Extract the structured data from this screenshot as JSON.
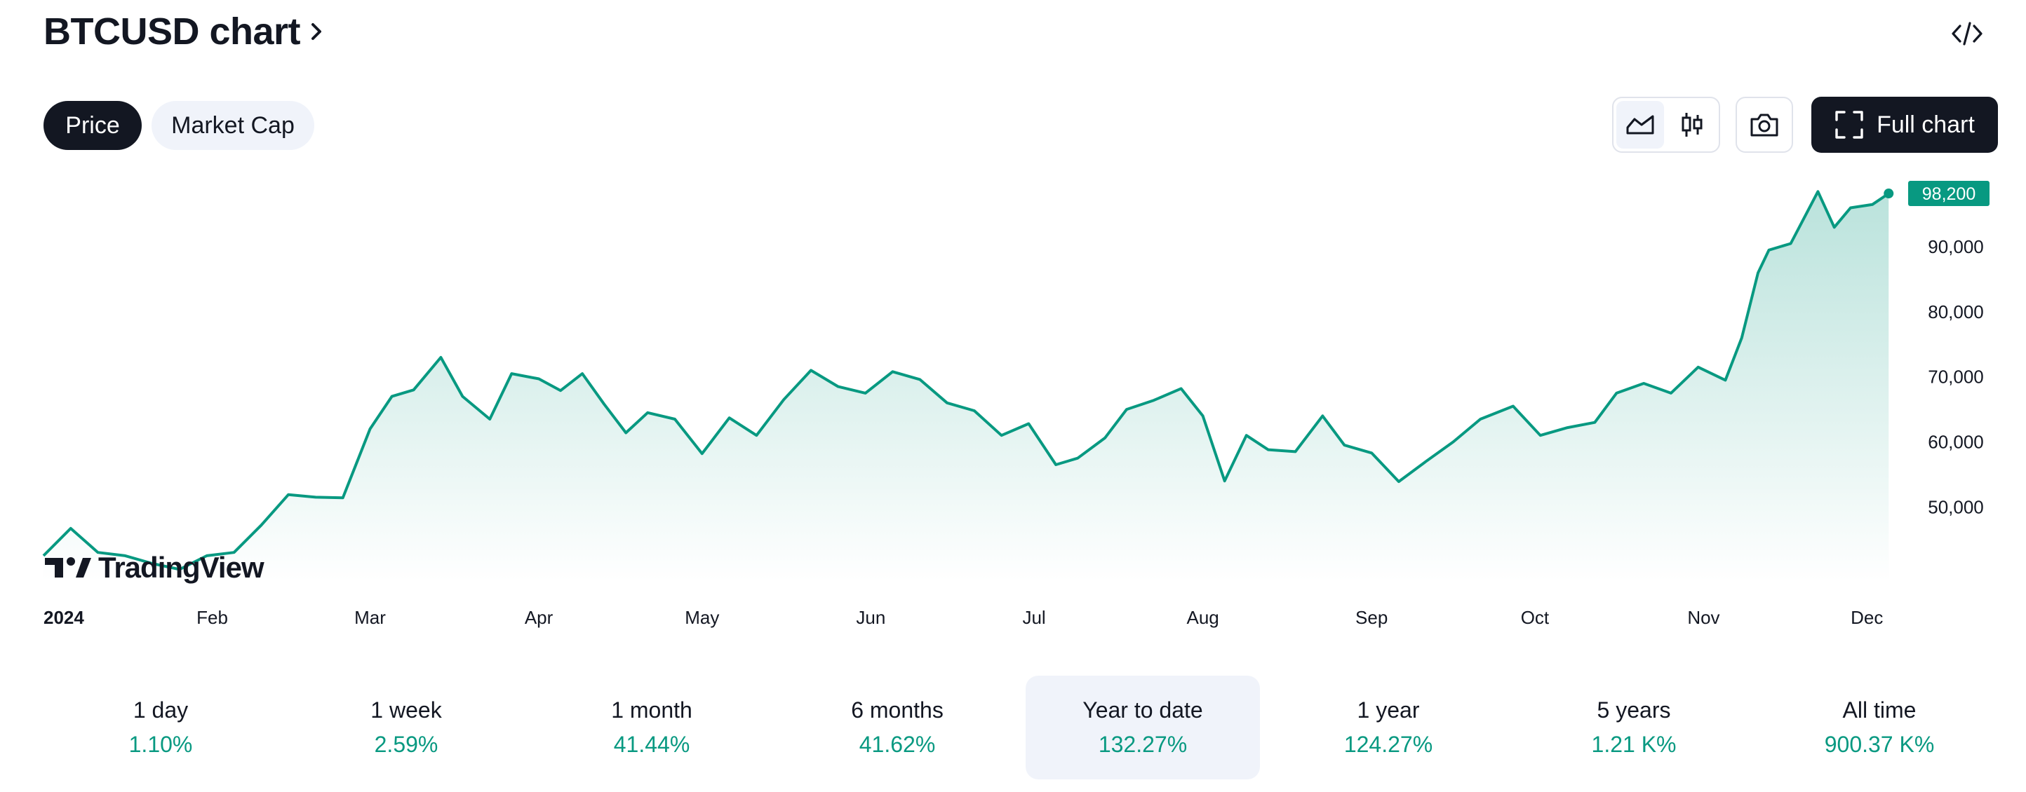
{
  "header": {
    "title": "BTCUSD chart",
    "title_chevron_icon": "chevron-right-icon",
    "embed_icon": "code-icon"
  },
  "tabs": [
    {
      "label": "Price",
      "selected": true
    },
    {
      "label": "Market Cap",
      "selected": false
    }
  ],
  "toolbar": {
    "line_style_icon": "area-chart-icon",
    "candle_style_icon": "candlestick-icon",
    "snapshot_icon": "camera-icon",
    "fullscreen_icon": "fullscreen-icon",
    "full_chart_label": "Full chart"
  },
  "watermark": {
    "text": "TradingView"
  },
  "colors": {
    "accent": "#089981",
    "dark": "#131722",
    "panel": "#f0f3fa"
  },
  "chart_data": {
    "type": "area",
    "symbol": "BTCUSD",
    "x_tick_labels": [
      "2024",
      "Feb",
      "Mar",
      "Apr",
      "May",
      "Jun",
      "Jul",
      "Aug",
      "Sep",
      "Oct",
      "Nov",
      "Dec"
    ],
    "y_tick_labels": [
      "50,000",
      "60,000",
      "70,000",
      "80,000",
      "90,000"
    ],
    "y_ticks": [
      50000,
      60000,
      70000,
      80000,
      90000
    ],
    "ylim": [
      38500,
      99500
    ],
    "last_price": 98200,
    "last_price_label": "98,200",
    "grid": false,
    "series": [
      {
        "x": [
          "2024-01-01",
          "2024-01-06",
          "2024-01-11",
          "2024-01-16",
          "2024-01-21",
          "2024-01-26",
          "2024-01-31",
          "2024-02-05",
          "2024-02-10",
          "2024-02-15",
          "2024-02-20",
          "2024-02-25",
          "2024-03-01",
          "2024-03-05",
          "2024-03-09",
          "2024-03-14",
          "2024-03-18",
          "2024-03-23",
          "2024-03-27",
          "2024-04-01",
          "2024-04-05",
          "2024-04-09",
          "2024-04-13",
          "2024-04-17",
          "2024-04-21",
          "2024-04-26",
          "2024-05-01",
          "2024-05-06",
          "2024-05-11",
          "2024-05-16",
          "2024-05-21",
          "2024-05-26",
          "2024-05-31",
          "2024-06-05",
          "2024-06-10",
          "2024-06-15",
          "2024-06-20",
          "2024-06-25",
          "2024-06-30",
          "2024-07-05",
          "2024-07-09",
          "2024-07-14",
          "2024-07-18",
          "2024-07-23",
          "2024-07-28",
          "2024-08-01",
          "2024-08-05",
          "2024-08-09",
          "2024-08-13",
          "2024-08-18",
          "2024-08-23",
          "2024-08-27",
          "2024-09-01",
          "2024-09-06",
          "2024-09-11",
          "2024-09-16",
          "2024-09-21",
          "2024-09-27",
          "2024-10-02",
          "2024-10-07",
          "2024-10-12",
          "2024-10-16",
          "2024-10-21",
          "2024-10-26",
          "2024-10-31",
          "2024-11-05",
          "2024-11-08",
          "2024-11-11",
          "2024-11-13",
          "2024-11-17",
          "2024-11-22",
          "2024-11-25",
          "2024-11-28",
          "2024-12-02",
          "2024-12-05"
        ],
        "y": [
          42500,
          46700,
          43000,
          42500,
          41300,
          40400,
          42500,
          43000,
          47200,
          51900,
          51500,
          51400,
          62000,
          67000,
          68000,
          73000,
          67000,
          63500,
          70500,
          69700,
          67900,
          70500,
          65800,
          61400,
          64500,
          63500,
          58200,
          63700,
          61000,
          66500,
          71000,
          68500,
          67500,
          70800,
          69600,
          66000,
          64800,
          61000,
          62800,
          56500,
          57500,
          60600,
          65000,
          66400,
          68200,
          64000,
          54000,
          61000,
          58800,
          58500,
          64000,
          59500,
          58300,
          53900,
          57000,
          60000,
          63500,
          65500,
          61000,
          62200,
          63000,
          67500,
          69000,
          67500,
          71500,
          69500,
          76000,
          86000,
          89500,
          90500,
          98500,
          93000,
          96000,
          96500,
          98200
        ]
      }
    ]
  },
  "performance": [
    {
      "label": "1 day",
      "value": "1.10%",
      "selected": false
    },
    {
      "label": "1 week",
      "value": "2.59%",
      "selected": false
    },
    {
      "label": "1 month",
      "value": "41.44%",
      "selected": false
    },
    {
      "label": "6 months",
      "value": "41.62%",
      "selected": false
    },
    {
      "label": "Year to date",
      "value": "132.27%",
      "selected": true
    },
    {
      "label": "1 year",
      "value": "124.27%",
      "selected": false
    },
    {
      "label": "5 years",
      "value": "1.21 K%",
      "selected": false
    },
    {
      "label": "All time",
      "value": "900.37 K%",
      "selected": false
    }
  ]
}
